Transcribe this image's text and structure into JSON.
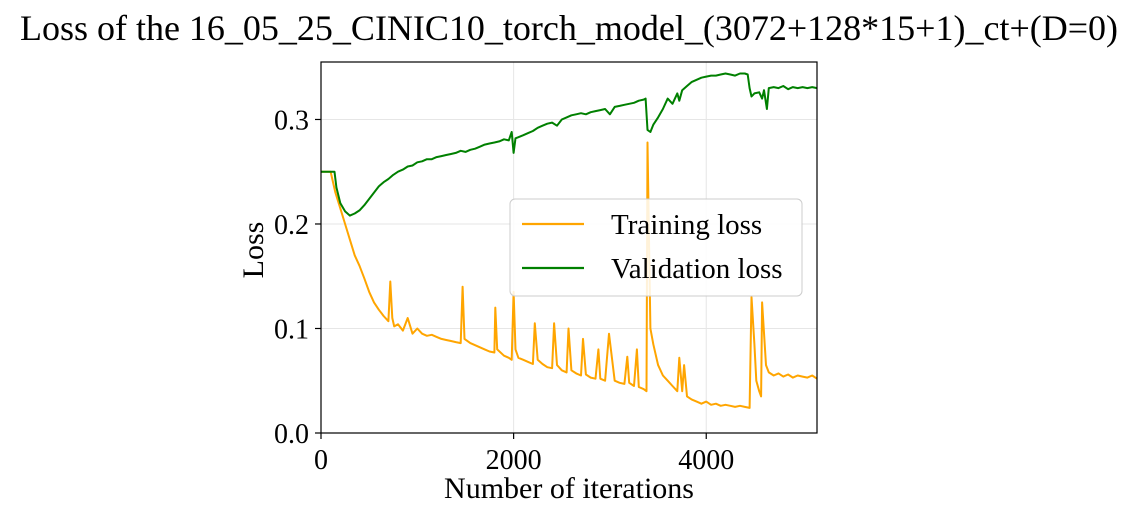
{
  "chart_data": {
    "type": "line",
    "title": "Loss of the 16_05_25_CINIC10_torch_model_(3072+128*15+1)_ct+(D=0)",
    "xlabel": "Number of iterations",
    "ylabel": "Loss",
    "xlim": [
      0,
      5150
    ],
    "ylim": [
      0.0,
      0.355
    ],
    "xticks": [
      0,
      2000,
      4000
    ],
    "xtick_labels": [
      "0",
      "2000",
      "4000"
    ],
    "yticks": [
      0.0,
      0.1,
      0.2,
      0.3
    ],
    "ytick_labels": [
      "0.0",
      "0.1",
      "0.2",
      "0.3"
    ],
    "grid": true,
    "legend_position": "center-right",
    "series": [
      {
        "name": "Training loss",
        "color": "#ffa500",
        "x": [
          0,
          100,
          150,
          200,
          250,
          300,
          350,
          400,
          450,
          500,
          550,
          600,
          650,
          700,
          720,
          740,
          760,
          800,
          850,
          900,
          950,
          1000,
          1050,
          1100,
          1150,
          1200,
          1250,
          1300,
          1350,
          1400,
          1450,
          1470,
          1490,
          1550,
          1600,
          1650,
          1700,
          1750,
          1800,
          1810,
          1830,
          1900,
          1950,
          1980,
          2000,
          2020,
          2050,
          2100,
          2150,
          2200,
          2220,
          2250,
          2300,
          2350,
          2400,
          2420,
          2450,
          2500,
          2550,
          2570,
          2600,
          2650,
          2700,
          2720,
          2750,
          2800,
          2850,
          2880,
          2900,
          2950,
          2990,
          3050,
          3100,
          3150,
          3180,
          3200,
          3250,
          3280,
          3300,
          3350,
          3380,
          3390,
          3420,
          3450,
          3500,
          3550,
          3600,
          3650,
          3700,
          3720,
          3750,
          3770,
          3800,
          3850,
          3900,
          3950,
          4000,
          4050,
          4100,
          4150,
          4200,
          4250,
          4300,
          4350,
          4400,
          4450,
          4470,
          4500,
          4520,
          4550,
          4570,
          4580,
          4620,
          4650,
          4700,
          4750,
          4800,
          4850,
          4900,
          4950,
          5000,
          5050,
          5100,
          5150
        ],
        "values": [
          0.25,
          0.25,
          0.23,
          0.215,
          0.2,
          0.185,
          0.17,
          0.16,
          0.148,
          0.135,
          0.125,
          0.118,
          0.112,
          0.107,
          0.145,
          0.11,
          0.102,
          0.104,
          0.098,
          0.11,
          0.095,
          0.1,
          0.095,
          0.093,
          0.094,
          0.092,
          0.09,
          0.089,
          0.088,
          0.087,
          0.086,
          0.14,
          0.09,
          0.086,
          0.084,
          0.082,
          0.08,
          0.078,
          0.077,
          0.12,
          0.08,
          0.074,
          0.072,
          0.07,
          0.135,
          0.08,
          0.072,
          0.07,
          0.068,
          0.066,
          0.105,
          0.07,
          0.066,
          0.063,
          0.062,
          0.105,
          0.065,
          0.06,
          0.058,
          0.1,
          0.06,
          0.057,
          0.055,
          0.09,
          0.056,
          0.053,
          0.052,
          0.08,
          0.052,
          0.05,
          0.095,
          0.05,
          0.048,
          0.047,
          0.073,
          0.048,
          0.045,
          0.08,
          0.044,
          0.042,
          0.04,
          0.278,
          0.1,
          0.085,
          0.065,
          0.055,
          0.05,
          0.045,
          0.04,
          0.072,
          0.04,
          0.065,
          0.035,
          0.032,
          0.03,
          0.028,
          0.03,
          0.027,
          0.028,
          0.026,
          0.027,
          0.026,
          0.025,
          0.026,
          0.025,
          0.024,
          0.13,
          0.085,
          0.05,
          0.04,
          0.035,
          0.125,
          0.065,
          0.058,
          0.055,
          0.057,
          0.054,
          0.056,
          0.053,
          0.055,
          0.054,
          0.053,
          0.055,
          0.052
        ]
      },
      {
        "name": "Validation loss",
        "color": "#008000",
        "x": [
          0,
          100,
          140,
          160,
          200,
          250,
          300,
          350,
          400,
          450,
          500,
          550,
          600,
          650,
          700,
          750,
          800,
          850,
          900,
          950,
          1000,
          1050,
          1100,
          1150,
          1200,
          1250,
          1300,
          1350,
          1400,
          1450,
          1500,
          1550,
          1600,
          1650,
          1700,
          1750,
          1800,
          1850,
          1900,
          1950,
          1980,
          2000,
          2020,
          2050,
          2100,
          2150,
          2200,
          2250,
          2300,
          2350,
          2400,
          2450,
          2500,
          2550,
          2600,
          2650,
          2700,
          2750,
          2800,
          2850,
          2900,
          2950,
          3000,
          3050,
          3100,
          3150,
          3200,
          3250,
          3300,
          3350,
          3370,
          3390,
          3420,
          3450,
          3500,
          3550,
          3600,
          3650,
          3700,
          3720,
          3750,
          3800,
          3850,
          3900,
          3950,
          4000,
          4050,
          4100,
          4150,
          4200,
          4250,
          4300,
          4350,
          4400,
          4430,
          4450,
          4470,
          4500,
          4550,
          4580,
          4600,
          4630,
          4650,
          4700,
          4750,
          4800,
          4850,
          4900,
          4950,
          5000,
          5050,
          5100,
          5150
        ],
        "values": [
          0.25,
          0.25,
          0.25,
          0.235,
          0.22,
          0.212,
          0.208,
          0.21,
          0.213,
          0.218,
          0.224,
          0.23,
          0.236,
          0.24,
          0.243,
          0.247,
          0.25,
          0.252,
          0.255,
          0.256,
          0.259,
          0.26,
          0.262,
          0.262,
          0.264,
          0.265,
          0.266,
          0.267,
          0.268,
          0.27,
          0.269,
          0.271,
          0.272,
          0.274,
          0.276,
          0.277,
          0.278,
          0.279,
          0.281,
          0.28,
          0.288,
          0.268,
          0.282,
          0.283,
          0.285,
          0.287,
          0.289,
          0.292,
          0.294,
          0.296,
          0.297,
          0.294,
          0.3,
          0.302,
          0.304,
          0.305,
          0.306,
          0.305,
          0.307,
          0.308,
          0.309,
          0.31,
          0.305,
          0.312,
          0.313,
          0.314,
          0.315,
          0.316,
          0.318,
          0.319,
          0.32,
          0.29,
          0.288,
          0.295,
          0.302,
          0.31,
          0.32,
          0.315,
          0.325,
          0.318,
          0.328,
          0.332,
          0.336,
          0.338,
          0.34,
          0.341,
          0.342,
          0.342,
          0.343,
          0.344,
          0.343,
          0.342,
          0.344,
          0.344,
          0.343,
          0.33,
          0.322,
          0.325,
          0.326,
          0.32,
          0.328,
          0.31,
          0.33,
          0.331,
          0.33,
          0.332,
          0.329,
          0.331,
          0.33,
          0.331,
          0.33,
          0.331,
          0.33
        ]
      }
    ]
  }
}
